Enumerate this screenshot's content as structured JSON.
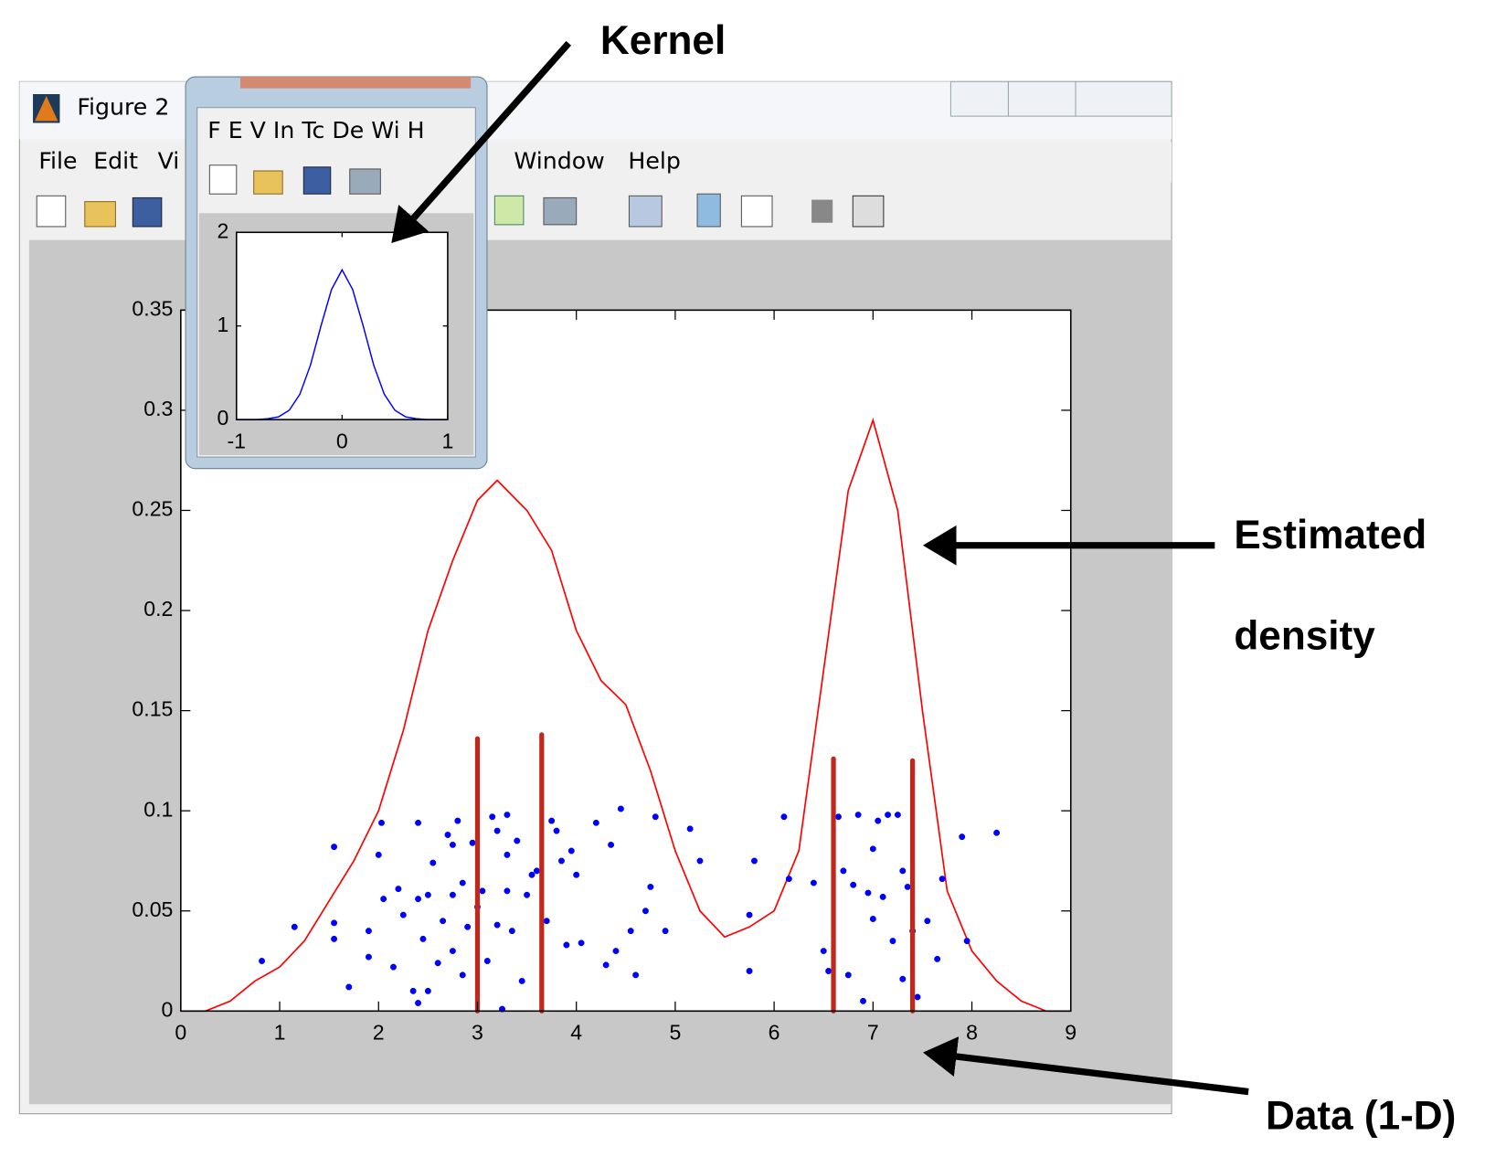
{
  "window": {
    "title": "Figure 2",
    "menu": [
      "File",
      "Edit",
      "Vi",
      "Window",
      "Help"
    ]
  },
  "kernel_window": {
    "menu": "F E V In Tc De Wi H"
  },
  "annotations": [
    "Kernel",
    "Estimated",
    "density",
    "Data (1-D)"
  ],
  "chart_data": [
    {
      "type": "line",
      "xlim": [
        0,
        9
      ],
      "ylim": [
        0,
        0.35
      ],
      "xticks": [
        0,
        1,
        2,
        3,
        4,
        5,
        6,
        7,
        8,
        9
      ],
      "yticks": [
        0,
        0.05,
        0.1,
        0.15,
        0.2,
        0.25,
        0.3,
        0.35
      ],
      "series": [
        {
          "type": "line",
          "color": "#ff0000",
          "x": [
            0,
            0.25,
            0.5,
            0.75,
            1.0,
            1.25,
            1.5,
            1.75,
            2.0,
            2.25,
            2.5,
            2.75,
            3.0,
            3.2,
            3.5,
            3.75,
            4.0,
            4.25,
            4.5,
            4.75,
            5.0,
            5.25,
            5.5,
            5.75,
            6.0,
            6.25,
            6.5,
            6.75,
            7.0,
            7.25,
            7.5,
            7.75,
            8.0,
            8.25,
            8.5,
            8.75,
            9.0
          ],
          "values": [
            0,
            0,
            0.005,
            0.015,
            0.022,
            0.035,
            0.055,
            0.075,
            0.1,
            0.14,
            0.19,
            0.225,
            0.255,
            0.265,
            0.25,
            0.23,
            0.19,
            0.165,
            0.153,
            0.12,
            0.08,
            0.05,
            0.037,
            0.042,
            0.05,
            0.08,
            0.17,
            0.26,
            0.295,
            0.25,
            0.15,
            0.06,
            0.03,
            0.015,
            0.005,
            0,
            0
          ]
        },
        {
          "type": "scatter",
          "color": "#0000ff",
          "x": [
            0.82,
            1.15,
            1.55,
            1.55,
            1.55,
            1.7,
            1.9,
            1.9,
            2.0,
            2.03,
            2.05,
            2.15,
            2.2,
            2.25,
            2.35,
            2.4,
            2.4,
            2.4,
            2.45,
            2.5,
            2.5,
            2.55,
            2.6,
            2.65,
            2.7,
            2.75,
            2.75,
            2.75,
            2.8,
            2.85,
            2.85,
            2.9,
            2.95,
            3.0,
            3.05,
            3.1,
            3.15,
            3.2,
            3.2,
            3.25,
            3.3,
            3.3,
            3.3,
            3.35,
            3.4,
            3.45,
            3.5,
            3.55,
            3.6,
            3.7,
            3.75,
            3.8,
            3.85,
            3.9,
            3.95,
            4.0,
            4.05,
            4.2,
            4.3,
            4.35,
            4.4,
            4.45,
            4.55,
            4.6,
            4.7,
            4.75,
            4.8,
            4.9,
            5.15,
            5.25,
            5.75,
            5.75,
            5.8,
            6.1,
            6.15,
            6.4,
            6.5,
            6.55,
            6.65,
            6.7,
            6.75,
            6.8,
            6.85,
            6.9,
            6.95,
            7.0,
            7.0,
            7.05,
            7.1,
            7.15,
            7.2,
            7.25,
            7.3,
            7.3,
            7.35,
            7.4,
            7.45,
            7.55,
            7.65,
            7.7,
            7.9,
            7.95,
            8.25
          ],
          "values": [
            0.025,
            0.042,
            0.082,
            0.044,
            0.036,
            0.012,
            0.04,
            0.027,
            0.078,
            0.094,
            0.056,
            0.022,
            0.061,
            0.048,
            0.01,
            0.056,
            0.094,
            0.004,
            0.036,
            0.058,
            0.01,
            0.074,
            0.024,
            0.045,
            0.088,
            0.083,
            0.058,
            0.03,
            0.095,
            0.064,
            0.018,
            0.042,
            0.084,
            0.052,
            0.06,
            0.025,
            0.097,
            0.09,
            0.043,
            0.001,
            0.098,
            0.078,
            0.06,
            0.04,
            0.085,
            0.015,
            0.058,
            0.068,
            0.07,
            0.045,
            0.095,
            0.09,
            0.075,
            0.033,
            0.08,
            0.068,
            0.034,
            0.094,
            0.023,
            0.083,
            0.03,
            0.101,
            0.04,
            0.018,
            0.05,
            0.062,
            0.097,
            0.04,
            0.091,
            0.075,
            0.048,
            0.02,
            0.075,
            0.097,
            0.066,
            0.064,
            0.03,
            0.02,
            0.097,
            0.07,
            0.018,
            0.063,
            0.098,
            0.005,
            0.059,
            0.081,
            0.046,
            0.095,
            0.057,
            0.098,
            0.035,
            0.098,
            0.07,
            0.016,
            0.062,
            0.04,
            0.007,
            0.045,
            0.026,
            0.066,
            0.087,
            0.035,
            0.089
          ]
        },
        {
          "type": "stem",
          "color": "#c0281c",
          "x": [
            3.0,
            3.65,
            6.6,
            7.4
          ],
          "values": [
            0.136,
            0.138,
            0.126,
            0.125
          ]
        }
      ]
    },
    {
      "type": "line",
      "xlim": [
        -1,
        1
      ],
      "ylim": [
        0,
        2
      ],
      "xticks": [
        -1,
        0,
        1
      ],
      "yticks": [
        0,
        1,
        2
      ],
      "series": [
        {
          "type": "line",
          "color": "#0000ff",
          "x": [
            -1,
            -0.9,
            -0.8,
            -0.7,
            -0.6,
            -0.5,
            -0.4,
            -0.3,
            -0.2,
            -0.1,
            0,
            0.1,
            0.2,
            0.3,
            0.4,
            0.5,
            0.6,
            0.7,
            0.8,
            0.9,
            1
          ],
          "values": [
            0,
            0,
            0,
            0.01,
            0.03,
            0.1,
            0.27,
            0.58,
            1.0,
            1.39,
            1.6,
            1.39,
            1.0,
            0.58,
            0.27,
            0.1,
            0.03,
            0.01,
            0,
            0,
            0
          ]
        }
      ]
    }
  ]
}
